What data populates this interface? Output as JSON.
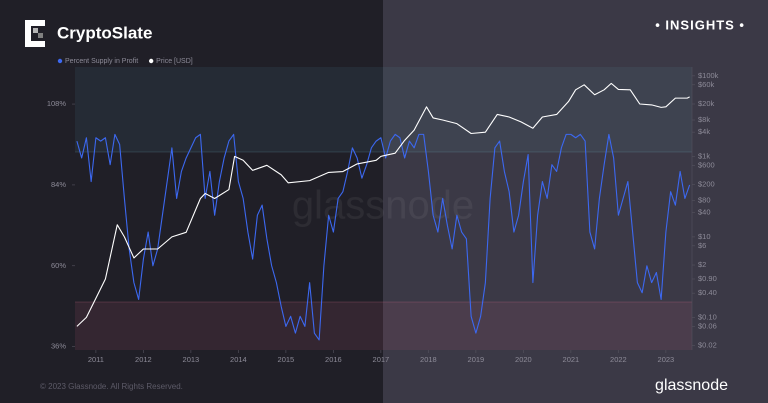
{
  "header": {
    "brand": "CryptoSlate",
    "badge": "• INSIGHTS •"
  },
  "watermark": "glassnode",
  "footer": {
    "copyright": "© 2023 Glassnode. All Rights Reserved.",
    "logo": "glassnode"
  },
  "chart_data": {
    "type": "line",
    "xlim": [
      2010.56,
      2023.55
    ],
    "xticks": [
      2011,
      2012,
      2013,
      2014,
      2015,
      2016,
      2017,
      2018,
      2019,
      2020,
      2021,
      2022,
      2023
    ],
    "ylim": [
      35,
      119
    ],
    "yticks": [
      {
        "value": 108,
        "label": "108%"
      },
      {
        "value": 84,
        "label": "84%"
      },
      {
        "value": 60,
        "label": "60%"
      },
      {
        "value": 36,
        "label": "36%"
      }
    ],
    "y2lim": [
      0.0155,
      166000
    ],
    "y2scale": "log",
    "y2ticks": [
      {
        "value": 100000,
        "label": "$100k"
      },
      {
        "value": 60000,
        "label": "$60k"
      },
      {
        "value": 20000,
        "label": "$20k"
      },
      {
        "value": 8000,
        "label": "$8k"
      },
      {
        "value": 4000,
        "label": "$4k"
      },
      {
        "value": 1000,
        "label": "$1k"
      },
      {
        "value": 600,
        "label": "$600"
      },
      {
        "value": 200,
        "label": "$200"
      },
      {
        "value": 80,
        "label": "$80"
      },
      {
        "value": 40,
        "label": "$40"
      },
      {
        "value": 10,
        "label": "$10"
      },
      {
        "value": 6,
        "label": "$6"
      },
      {
        "value": 2,
        "label": "$2"
      },
      {
        "value": 0.9,
        "label": "$0.90"
      },
      {
        "value": 0.4,
        "label": "$0.40"
      },
      {
        "value": 0.1,
        "label": "$0.10"
      },
      {
        "value": 0.06,
        "label": "$0.06"
      },
      {
        "value": 0.02,
        "label": "$0.02"
      }
    ],
    "series": [
      {
        "name": "Percent Supply in Profit",
        "color": "#3c68f0",
        "x": [
          2010.6,
          2010.7,
          2010.8,
          2010.9,
          2011.0,
          2011.1,
          2011.2,
          2011.3,
          2011.4,
          2011.5,
          2011.6,
          2011.7,
          2011.8,
          2011.9,
          2012.0,
          2012.1,
          2012.2,
          2012.3,
          2012.4,
          2012.5,
          2012.6,
          2012.7,
          2012.8,
          2012.9,
          2013.0,
          2013.1,
          2013.2,
          2013.3,
          2013.4,
          2013.5,
          2013.6,
          2013.7,
          2013.8,
          2013.9,
          2014.0,
          2014.1,
          2014.2,
          2014.3,
          2014.4,
          2014.5,
          2014.6,
          2014.7,
          2014.8,
          2014.9,
          2015.0,
          2015.1,
          2015.2,
          2015.3,
          2015.4,
          2015.5,
          2015.6,
          2015.7,
          2015.8,
          2015.9,
          2016.0,
          2016.1,
          2016.2,
          2016.3,
          2016.4,
          2016.5,
          2016.6,
          2016.7,
          2016.8,
          2016.9,
          2017.0,
          2017.1,
          2017.2,
          2017.3,
          2017.4,
          2017.5,
          2017.6,
          2017.7,
          2017.8,
          2017.9,
          2018.0,
          2018.1,
          2018.2,
          2018.3,
          2018.4,
          2018.5,
          2018.6,
          2018.7,
          2018.8,
          2018.9,
          2019.0,
          2019.1,
          2019.2,
          2019.3,
          2019.4,
          2019.5,
          2019.6,
          2019.7,
          2019.8,
          2019.9,
          2020.0,
          2020.1,
          2020.2,
          2020.3,
          2020.4,
          2020.5,
          2020.6,
          2020.7,
          2020.8,
          2020.9,
          2021.0,
          2021.1,
          2021.2,
          2021.3,
          2021.4,
          2021.5,
          2021.6,
          2021.7,
          2021.8,
          2021.9,
          2022.0,
          2022.1,
          2022.2,
          2022.3,
          2022.4,
          2022.5,
          2022.6,
          2022.7,
          2022.8,
          2022.9,
          2023.0,
          2023.1,
          2023.2,
          2023.3,
          2023.4,
          2023.5
        ],
        "values": [
          97,
          92,
          98,
          85,
          98,
          97,
          98,
          90,
          99,
          96,
          80,
          65,
          55,
          50,
          62,
          70,
          60,
          65,
          75,
          85,
          95,
          80,
          88,
          92,
          95,
          98,
          99,
          80,
          88,
          75,
          85,
          92,
          97,
          99,
          85,
          80,
          70,
          62,
          75,
          78,
          68,
          60,
          55,
          48,
          42,
          45,
          40,
          45,
          42,
          55,
          40,
          38,
          60,
          75,
          70,
          80,
          82,
          88,
          95,
          92,
          86,
          90,
          95,
          97,
          98,
          92,
          97,
          99,
          98,
          92,
          97,
          95,
          99,
          99,
          88,
          75,
          70,
          80,
          72,
          65,
          75,
          70,
          68,
          45,
          40,
          45,
          55,
          80,
          95,
          97,
          88,
          82,
          70,
          75,
          85,
          93,
          55,
          75,
          85,
          80,
          90,
          88,
          95,
          99,
          99,
          98,
          99,
          97,
          70,
          65,
          80,
          90,
          99,
          92,
          75,
          80,
          85,
          70,
          55,
          52,
          60,
          55,
          58,
          50,
          70,
          82,
          78,
          88,
          80,
          84
        ]
      },
      {
        "name": "Price [USD]",
        "color": "#ffffff",
        "axis": "y2",
        "x": [
          2010.6,
          2010.8,
          2011.0,
          2011.2,
          2011.45,
          2011.6,
          2011.8,
          2012.0,
          2012.3,
          2012.6,
          2012.9,
          2013.2,
          2013.3,
          2013.5,
          2013.8,
          2013.92,
          2014.1,
          2014.3,
          2014.6,
          2014.9,
          2015.05,
          2015.5,
          2015.9,
          2016.2,
          2016.5,
          2016.9,
          2017.0,
          2017.3,
          2017.5,
          2017.7,
          2017.96,
          2018.1,
          2018.3,
          2018.6,
          2018.9,
          2019.2,
          2019.45,
          2019.7,
          2019.95,
          2020.2,
          2020.4,
          2020.7,
          2020.95,
          2021.1,
          2021.28,
          2021.5,
          2021.7,
          2021.85,
          2022.0,
          2022.25,
          2022.45,
          2022.7,
          2022.9,
          2023.0,
          2023.2,
          2023.45,
          2023.5
        ],
        "values": [
          0.06,
          0.1,
          0.3,
          0.9,
          20,
          10,
          3,
          5,
          5,
          10,
          13,
          90,
          120,
          90,
          150,
          1000,
          800,
          450,
          600,
          350,
          220,
          250,
          400,
          420,
          650,
          800,
          1000,
          1200,
          2500,
          4500,
          17000,
          9000,
          8000,
          6500,
          3700,
          4000,
          11000,
          9500,
          7200,
          5000,
          9500,
          11000,
          23000,
          45000,
          60000,
          34000,
          45000,
          65000,
          46000,
          45000,
          20000,
          19000,
          16500,
          17000,
          28000,
          28000,
          30000
        ]
      }
    ]
  }
}
